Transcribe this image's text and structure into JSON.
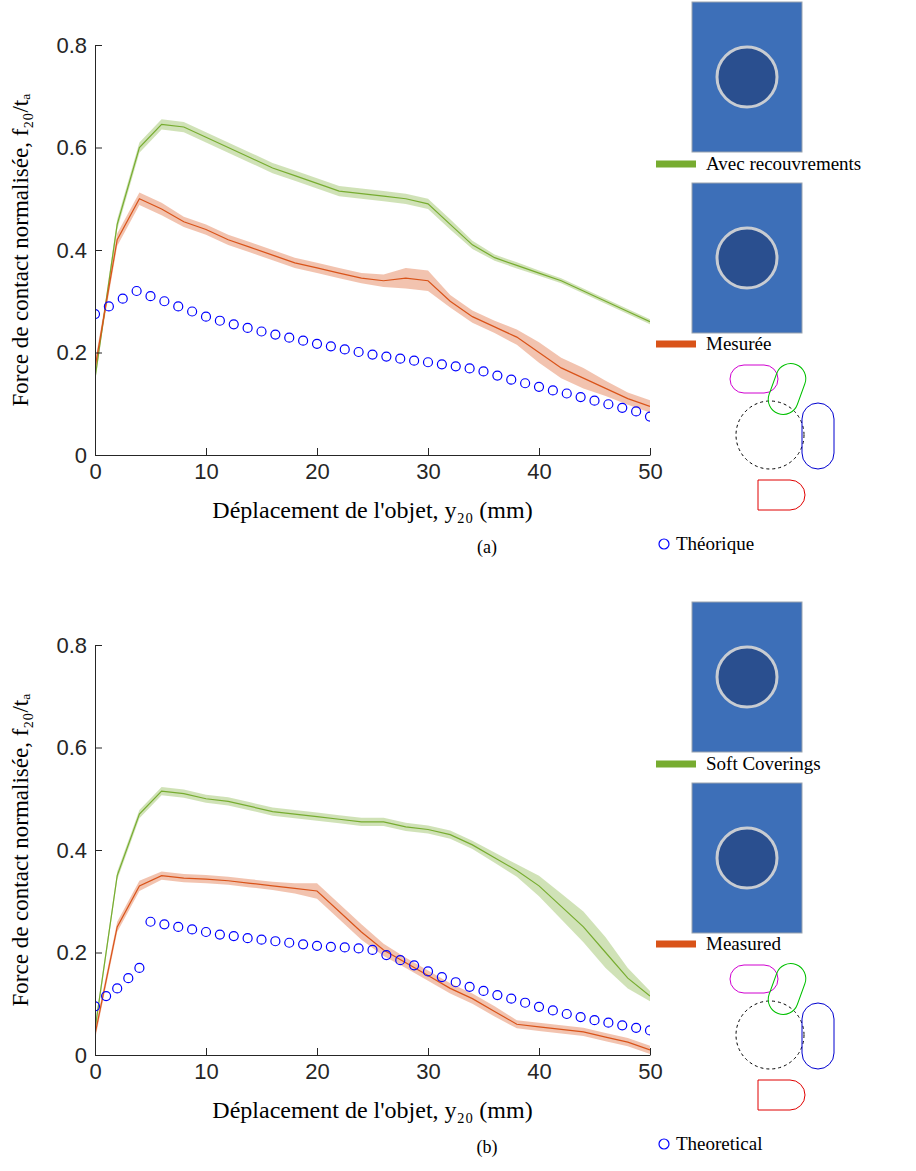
{
  "chart_data": [
    {
      "type": "line",
      "caption": "(a)",
      "x_label": "Déplacement de l'objet, y₂₀ (mm)",
      "y_label": "Force de contact normalisée, f₂₀/tₐ",
      "xlim": [
        0,
        50
      ],
      "xticks": [
        0,
        10,
        20,
        30,
        40,
        50
      ],
      "ylim": [
        0,
        0.8
      ],
      "yticks": [
        0,
        0.2,
        0.4,
        0.6,
        0.8
      ],
      "grid": false,
      "legend": "right",
      "series": [
        {
          "name": "Avec recouvrements",
          "color": "#77ac30",
          "type": "line",
          "line_style": "solid",
          "x": [
            0,
            2,
            4,
            6,
            8,
            10,
            12,
            14,
            16,
            18,
            20,
            22,
            24,
            26,
            28,
            30,
            32,
            34,
            36,
            38,
            40,
            42,
            44,
            46,
            48,
            50
          ],
          "values": [
            0.15,
            0.45,
            0.6,
            0.645,
            0.64,
            0.62,
            0.6,
            0.58,
            0.56,
            0.545,
            0.53,
            0.515,
            0.51,
            0.505,
            0.5,
            0.49,
            0.45,
            0.41,
            0.385,
            0.37,
            0.355,
            0.34,
            0.32,
            0.3,
            0.28,
            0.26
          ],
          "error": [
            0.01,
            0.01,
            0.01,
            0.01,
            0.01,
            0.01,
            0.01,
            0.01,
            0.01,
            0.01,
            0.01,
            0.01,
            0.01,
            0.01,
            0.01,
            0.01,
            0.01,
            0.008,
            0.006,
            0.006,
            0.005,
            0.005,
            0.005,
            0.005,
            0.005,
            0.005
          ]
        },
        {
          "name": "Mesurée",
          "color": "#d95319",
          "type": "line",
          "line_style": "solid",
          "x": [
            0,
            2,
            4,
            6,
            8,
            10,
            12,
            14,
            16,
            18,
            20,
            22,
            24,
            26,
            28,
            30,
            32,
            34,
            36,
            38,
            40,
            42,
            44,
            46,
            48,
            50
          ],
          "values": [
            0.17,
            0.42,
            0.5,
            0.48,
            0.455,
            0.44,
            0.42,
            0.405,
            0.39,
            0.375,
            0.365,
            0.355,
            0.345,
            0.34,
            0.345,
            0.34,
            0.3,
            0.27,
            0.25,
            0.23,
            0.2,
            0.17,
            0.15,
            0.13,
            0.11,
            0.095
          ],
          "error": [
            0.012,
            0.012,
            0.012,
            0.012,
            0.01,
            0.01,
            0.01,
            0.01,
            0.01,
            0.01,
            0.01,
            0.01,
            0.01,
            0.012,
            0.02,
            0.02,
            0.012,
            0.012,
            0.012,
            0.015,
            0.02,
            0.02,
            0.02,
            0.015,
            0.012,
            0.012
          ]
        },
        {
          "name": "Théorique",
          "color": "#0000ff",
          "type": "scatter",
          "marker": "circle",
          "x": [
            0,
            1.25,
            2.5,
            3.75,
            5,
            6.25,
            7.5,
            8.75,
            10,
            11.25,
            12.5,
            13.75,
            15,
            16.25,
            17.5,
            18.75,
            20,
            21.25,
            22.5,
            23.75,
            25,
            26.25,
            27.5,
            28.75,
            30,
            31.25,
            32.5,
            33.75,
            35,
            36.25,
            37.5,
            38.75,
            40,
            41.25,
            42.5,
            43.75,
            45,
            46.25,
            47.5,
            48.75,
            50
          ],
          "values": [
            0.275,
            0.29,
            0.305,
            0.32,
            0.31,
            0.3,
            0.29,
            0.28,
            0.27,
            0.262,
            0.255,
            0.248,
            0.241,
            0.235,
            0.229,
            0.223,
            0.217,
            0.212,
            0.206,
            0.201,
            0.196,
            0.192,
            0.188,
            0.184,
            0.181,
            0.177,
            0.173,
            0.169,
            0.163,
            0.155,
            0.147,
            0.14,
            0.133,
            0.126,
            0.12,
            0.113,
            0.106,
            0.099,
            0.092,
            0.085,
            0.075
          ]
        }
      ]
    },
    {
      "type": "line",
      "caption": "(b)",
      "x_label": "Déplacement de l'objet, y₂₀ (mm)",
      "y_label": "Force de contact normalisée, f₂₀/tₐ",
      "xlim": [
        0,
        50
      ],
      "xticks": [
        0,
        10,
        20,
        30,
        40,
        50
      ],
      "ylim": [
        0,
        0.8
      ],
      "yticks": [
        0,
        0.2,
        0.4,
        0.6,
        0.8
      ],
      "grid": false,
      "legend": "right",
      "series": [
        {
          "name": "Soft Coverings",
          "color": "#77ac30",
          "type": "line",
          "line_style": "solid",
          "x": [
            0,
            2,
            4,
            6,
            8,
            10,
            12,
            14,
            16,
            18,
            20,
            22,
            24,
            26,
            28,
            30,
            32,
            34,
            36,
            38,
            40,
            42,
            44,
            46,
            48,
            50
          ],
          "values": [
            0.05,
            0.35,
            0.47,
            0.515,
            0.51,
            0.5,
            0.495,
            0.485,
            0.475,
            0.47,
            0.465,
            0.46,
            0.455,
            0.455,
            0.445,
            0.44,
            0.43,
            0.41,
            0.385,
            0.36,
            0.33,
            0.29,
            0.25,
            0.2,
            0.15,
            0.115
          ],
          "error": [
            0.008,
            0.008,
            0.008,
            0.008,
            0.008,
            0.008,
            0.008,
            0.008,
            0.008,
            0.008,
            0.008,
            0.008,
            0.008,
            0.008,
            0.008,
            0.008,
            0.008,
            0.008,
            0.01,
            0.012,
            0.02,
            0.025,
            0.03,
            0.03,
            0.02,
            0.01
          ]
        },
        {
          "name": "Measured",
          "color": "#d95319",
          "type": "line",
          "line_style": "solid",
          "x": [
            0,
            2,
            4,
            6,
            8,
            10,
            12,
            14,
            16,
            18,
            20,
            22,
            24,
            26,
            28,
            30,
            32,
            34,
            36,
            38,
            40,
            42,
            44,
            46,
            48,
            50
          ],
          "values": [
            0.04,
            0.25,
            0.33,
            0.35,
            0.345,
            0.343,
            0.34,
            0.335,
            0.33,
            0.325,
            0.32,
            0.28,
            0.24,
            0.205,
            0.18,
            0.155,
            0.13,
            0.11,
            0.085,
            0.06,
            0.055,
            0.05,
            0.045,
            0.035,
            0.025,
            0.01
          ],
          "error": [
            0.01,
            0.01,
            0.01,
            0.008,
            0.008,
            0.008,
            0.008,
            0.008,
            0.008,
            0.01,
            0.015,
            0.015,
            0.015,
            0.012,
            0.01,
            0.01,
            0.01,
            0.01,
            0.01,
            0.008,
            0.008,
            0.008,
            0.008,
            0.008,
            0.008,
            0.008
          ]
        },
        {
          "name": "Theoretical",
          "color": "#0000ff",
          "type": "scatter",
          "marker": "circle",
          "x": [
            0,
            1,
            2,
            3,
            4,
            5,
            6.25,
            7.5,
            8.75,
            10,
            11.25,
            12.5,
            13.75,
            15,
            16.25,
            17.5,
            18.75,
            20,
            21.25,
            22.5,
            23.75,
            25,
            26.25,
            27.5,
            28.75,
            30,
            31.25,
            32.5,
            33.75,
            35,
            36.25,
            37.5,
            38.75,
            40,
            41.25,
            42.5,
            43.75,
            45,
            46.25,
            47.5,
            48.75,
            50
          ],
          "values": [
            0.095,
            0.115,
            0.13,
            0.15,
            0.17,
            0.26,
            0.255,
            0.25,
            0.245,
            0.24,
            0.235,
            0.232,
            0.228,
            0.225,
            0.222,
            0.219,
            0.216,
            0.213,
            0.211,
            0.21,
            0.208,
            0.205,
            0.195,
            0.185,
            0.175,
            0.163,
            0.152,
            0.142,
            0.133,
            0.125,
            0.117,
            0.11,
            0.102,
            0.094,
            0.087,
            0.08,
            0.074,
            0.068,
            0.063,
            0.058,
            0.053,
            0.048
          ]
        }
      ]
    }
  ]
}
